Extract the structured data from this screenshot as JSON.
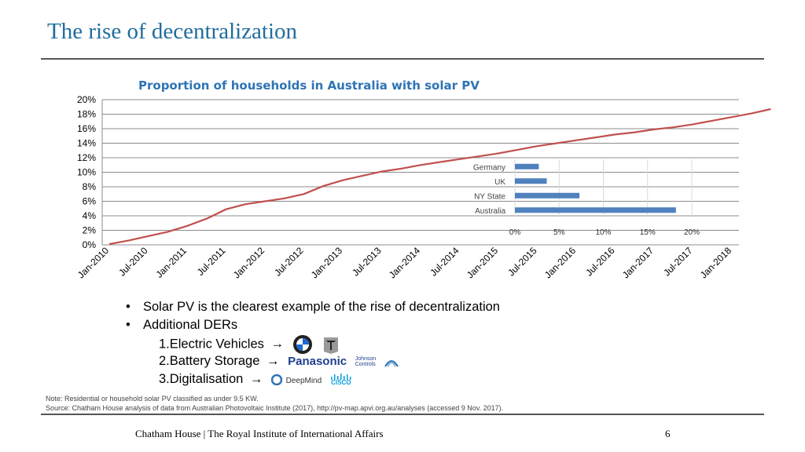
{
  "slide": {
    "title": "The rise of decentralization",
    "page_number": "6",
    "footer": "Chatham House  |  The Royal Institute of International Affairs"
  },
  "chart_data": [
    {
      "type": "line",
      "title": "Proportion of households in Australia with solar PV",
      "y_ticks": [
        "0%",
        "2%",
        "4%",
        "6%",
        "8%",
        "10%",
        "12%",
        "14%",
        "16%",
        "18%",
        "20%"
      ],
      "ylim": [
        0,
        20
      ],
      "x_tick_labels": [
        "Jan-2010",
        "Jul-2010",
        "Jan-2011",
        "Jul-2011",
        "Jan-2012",
        "Jul-2012",
        "Jan-2013",
        "Jul-2013",
        "Jan-2014",
        "Jul-2014",
        "Jan-2015",
        "Jul-2015",
        "Jan-2016",
        "Jul-2016",
        "Jan-2017",
        "Jul-2017",
        "Jan-2018"
      ],
      "series": [
        {
          "name": "Australia households with solar PV",
          "color": "#c0504d",
          "x": [
            0,
            3,
            6,
            9,
            12,
            15,
            18,
            21,
            24,
            27,
            30,
            33,
            36,
            39,
            42,
            45,
            48,
            51,
            54,
            57,
            60,
            63,
            66,
            69,
            72,
            75,
            78,
            81,
            84,
            87,
            90,
            93,
            96,
            99,
            102
          ],
          "values": [
            0.1,
            0.6,
            1.2,
            1.8,
            2.6,
            3.6,
            4.9,
            5.6,
            6.0,
            6.4,
            7.0,
            8.1,
            8.9,
            9.5,
            10.1,
            10.5,
            11.0,
            11.4,
            11.8,
            12.2,
            12.6,
            13.1,
            13.6,
            14.0,
            14.4,
            14.8,
            15.2,
            15.5,
            15.9,
            16.2,
            16.6,
            17.1,
            17.6,
            18.1,
            18.7
          ]
        }
      ]
    },
    {
      "type": "bar",
      "orientation": "horizontal",
      "categories": [
        "Germany",
        "UK",
        "NY State",
        "Australia"
      ],
      "values": [
        2.7,
        3.6,
        7.3,
        18.2
      ],
      "color": "#4f81bd",
      "x_ticks": [
        "0%",
        "5%",
        "10%",
        "15%",
        "20%"
      ],
      "xlim": [
        0,
        20
      ]
    }
  ],
  "bullets": {
    "b1": "Solar PV is the clearest example of the rise of decentralization",
    "b2": "Additional DERs",
    "s1": "1.Electric Vehicles",
    "s2": "2.Battery Storage",
    "s3": "3.Digitalisation",
    "bullet_char": "•",
    "arrow": "→"
  },
  "logos": {
    "panasonic": "Panasonic",
    "johnson_line1": "Johnson",
    "johnson_line2": "Controls",
    "deepmind": "DeepMind",
    "cisco": "CISCO"
  },
  "notes": {
    "note": "Note: Residential or household solar PV classified as under 9.5 KW.",
    "source": "Source: Chatham House analysis of data from Australian Photovoltaic Institute (2017), http://pv-map.apvi.org.au/analyses (accessed 9 Nov. 2017)."
  }
}
